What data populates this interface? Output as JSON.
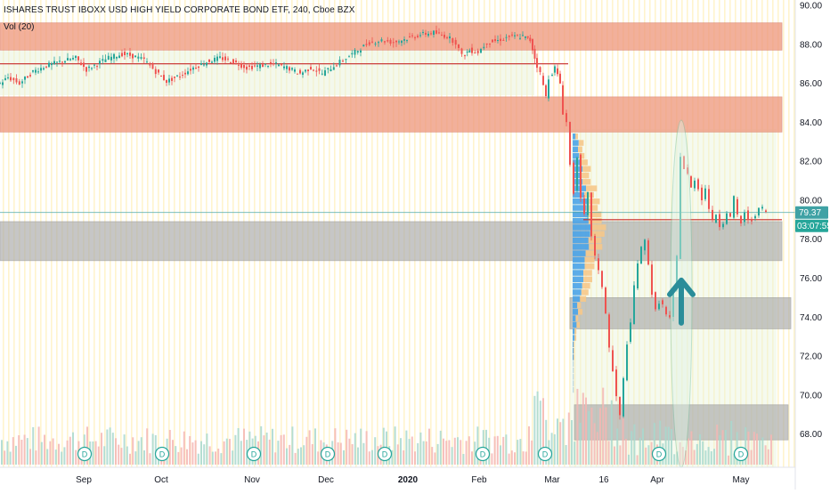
{
  "header": {
    "title": "ISHARES TRUST IBOXX USD HIGH YIELD CORPORATE BOND ETF, 240, Cboe BZX",
    "volume_label": "Vol (20)"
  },
  "chart_data": {
    "type": "candlestick",
    "y_axis": {
      "range": [
        66.5,
        90.5
      ],
      "ticks": [
        "90.00",
        "88.00",
        "86.00",
        "84.00",
        "82.00",
        "80.00",
        "78.00",
        "76.00",
        "74.00",
        "72.00",
        "70.00",
        "68.00"
      ]
    },
    "x_axis": {
      "ticks": [
        "Sep",
        "Oct",
        "Nov",
        "Dec",
        "2020",
        "Feb",
        "Mar",
        "16",
        "Apr",
        "May"
      ]
    },
    "last_price": "79.37",
    "countdown": "03:07:55",
    "dividend_marker": "D",
    "dividend_markers": [
      "D",
      "D",
      "D",
      "D",
      "D",
      "D",
      "D",
      "D",
      "D"
    ],
    "price_path": [
      [
        0,
        85.9
      ],
      [
        12,
        86.3
      ],
      [
        25,
        86.0
      ],
      [
        40,
        86.6
      ],
      [
        55,
        86.9
      ],
      [
        70,
        87.1
      ],
      [
        88,
        87.3
      ],
      [
        100,
        86.7
      ],
      [
        112,
        87.0
      ],
      [
        125,
        87.3
      ],
      [
        140,
        87.5
      ],
      [
        152,
        87.4
      ],
      [
        165,
        87.2
      ],
      [
        178,
        86.6
      ],
      [
        190,
        86.1
      ],
      [
        205,
        86.4
      ],
      [
        220,
        86.8
      ],
      [
        235,
        87.1
      ],
      [
        250,
        87.3
      ],
      [
        265,
        87.1
      ],
      [
        280,
        86.8
      ],
      [
        295,
        86.9
      ],
      [
        310,
        87.0
      ],
      [
        325,
        86.8
      ],
      [
        340,
        86.5
      ],
      [
        352,
        86.8
      ],
      [
        365,
        86.5
      ],
      [
        378,
        86.9
      ],
      [
        392,
        87.3
      ],
      [
        405,
        87.7
      ],
      [
        418,
        88.1
      ],
      [
        432,
        88.2
      ],
      [
        445,
        88.1
      ],
      [
        460,
        88.3
      ],
      [
        475,
        88.5
      ],
      [
        490,
        88.6
      ],
      [
        505,
        88.4
      ],
      [
        515,
        88.1
      ],
      [
        522,
        87.4
      ],
      [
        530,
        87.7
      ],
      [
        540,
        87.6
      ],
      [
        550,
        88.1
      ],
      [
        562,
        88.2
      ],
      [
        575,
        88.4
      ],
      [
        590,
        88.4
      ],
      [
        598,
        88.2
      ],
      [
        603,
        87.3
      ],
      [
        610,
        86.5
      ],
      [
        616,
        85.3
      ],
      [
        620,
        86.3
      ],
      [
        626,
        86.8
      ],
      [
        632,
        86.0
      ],
      [
        636,
        84.5
      ],
      [
        640,
        84.0
      ],
      [
        644,
        81.8
      ],
      [
        648,
        80.4
      ],
      [
        652,
        82.3
      ],
      [
        656,
        80.0
      ],
      [
        660,
        79.2
      ],
      [
        664,
        80.3
      ],
      [
        668,
        78.2
      ],
      [
        672,
        77.1
      ],
      [
        676,
        76.3
      ],
      [
        680,
        75.6
      ],
      [
        684,
        74.2
      ],
      [
        688,
        72.4
      ],
      [
        692,
        71.2
      ],
      [
        696,
        69.9
      ],
      [
        700,
        68.9
      ],
      [
        704,
        70.8
      ],
      [
        708,
        72.7
      ],
      [
        712,
        73.6
      ],
      [
        716,
        75.6
      ],
      [
        720,
        76.8
      ],
      [
        724,
        77.5
      ],
      [
        728,
        77.9
      ],
      [
        732,
        76.8
      ],
      [
        736,
        75.2
      ],
      [
        740,
        74.3
      ],
      [
        744,
        74.8
      ],
      [
        748,
        74.6
      ],
      [
        752,
        74.1
      ],
      [
        756,
        73.9
      ],
      [
        760,
        75.3
      ],
      [
        764,
        77.1
      ],
      [
        768,
        82.3
      ],
      [
        772,
        81.6
      ],
      [
        776,
        81.3
      ],
      [
        780,
        80.6
      ],
      [
        784,
        81.1
      ],
      [
        788,
        80.6
      ],
      [
        792,
        80.1
      ],
      [
        796,
        80.6
      ],
      [
        800,
        79.6
      ],
      [
        804,
        78.9
      ],
      [
        808,
        79.3
      ],
      [
        812,
        78.7
      ],
      [
        816,
        78.9
      ],
      [
        820,
        79.4
      ],
      [
        824,
        79.1
      ],
      [
        828,
        80.1
      ],
      [
        832,
        79.2
      ],
      [
        836,
        78.8
      ],
      [
        840,
        79.4
      ],
      [
        844,
        78.9
      ],
      [
        848,
        79.0
      ],
      [
        852,
        79.3
      ],
      [
        856,
        79.5
      ],
      [
        860,
        79.6
      ],
      [
        864,
        79.4
      ]
    ],
    "resistance_zones": [
      [
        87.7,
        89.1
      ],
      [
        83.5,
        85.3
      ]
    ],
    "support_zones": [
      [
        76.9,
        78.9
      ],
      [
        73.4,
        75.0
      ],
      [
        67.7,
        69.5
      ]
    ],
    "horizontal_lines": [
      87.0,
      79.0
    ],
    "current_price_line": 79.37
  },
  "colors": {
    "up": "#26a69a",
    "down": "#ef5350",
    "zone_red": "#ef9a80",
    "zone_gray": "#a9a9a9",
    "arrow": "#2a8d99",
    "tag": "#3fa2a5",
    "tag_dark": "#26a69a",
    "grid_stripe": "#fff3c8"
  }
}
